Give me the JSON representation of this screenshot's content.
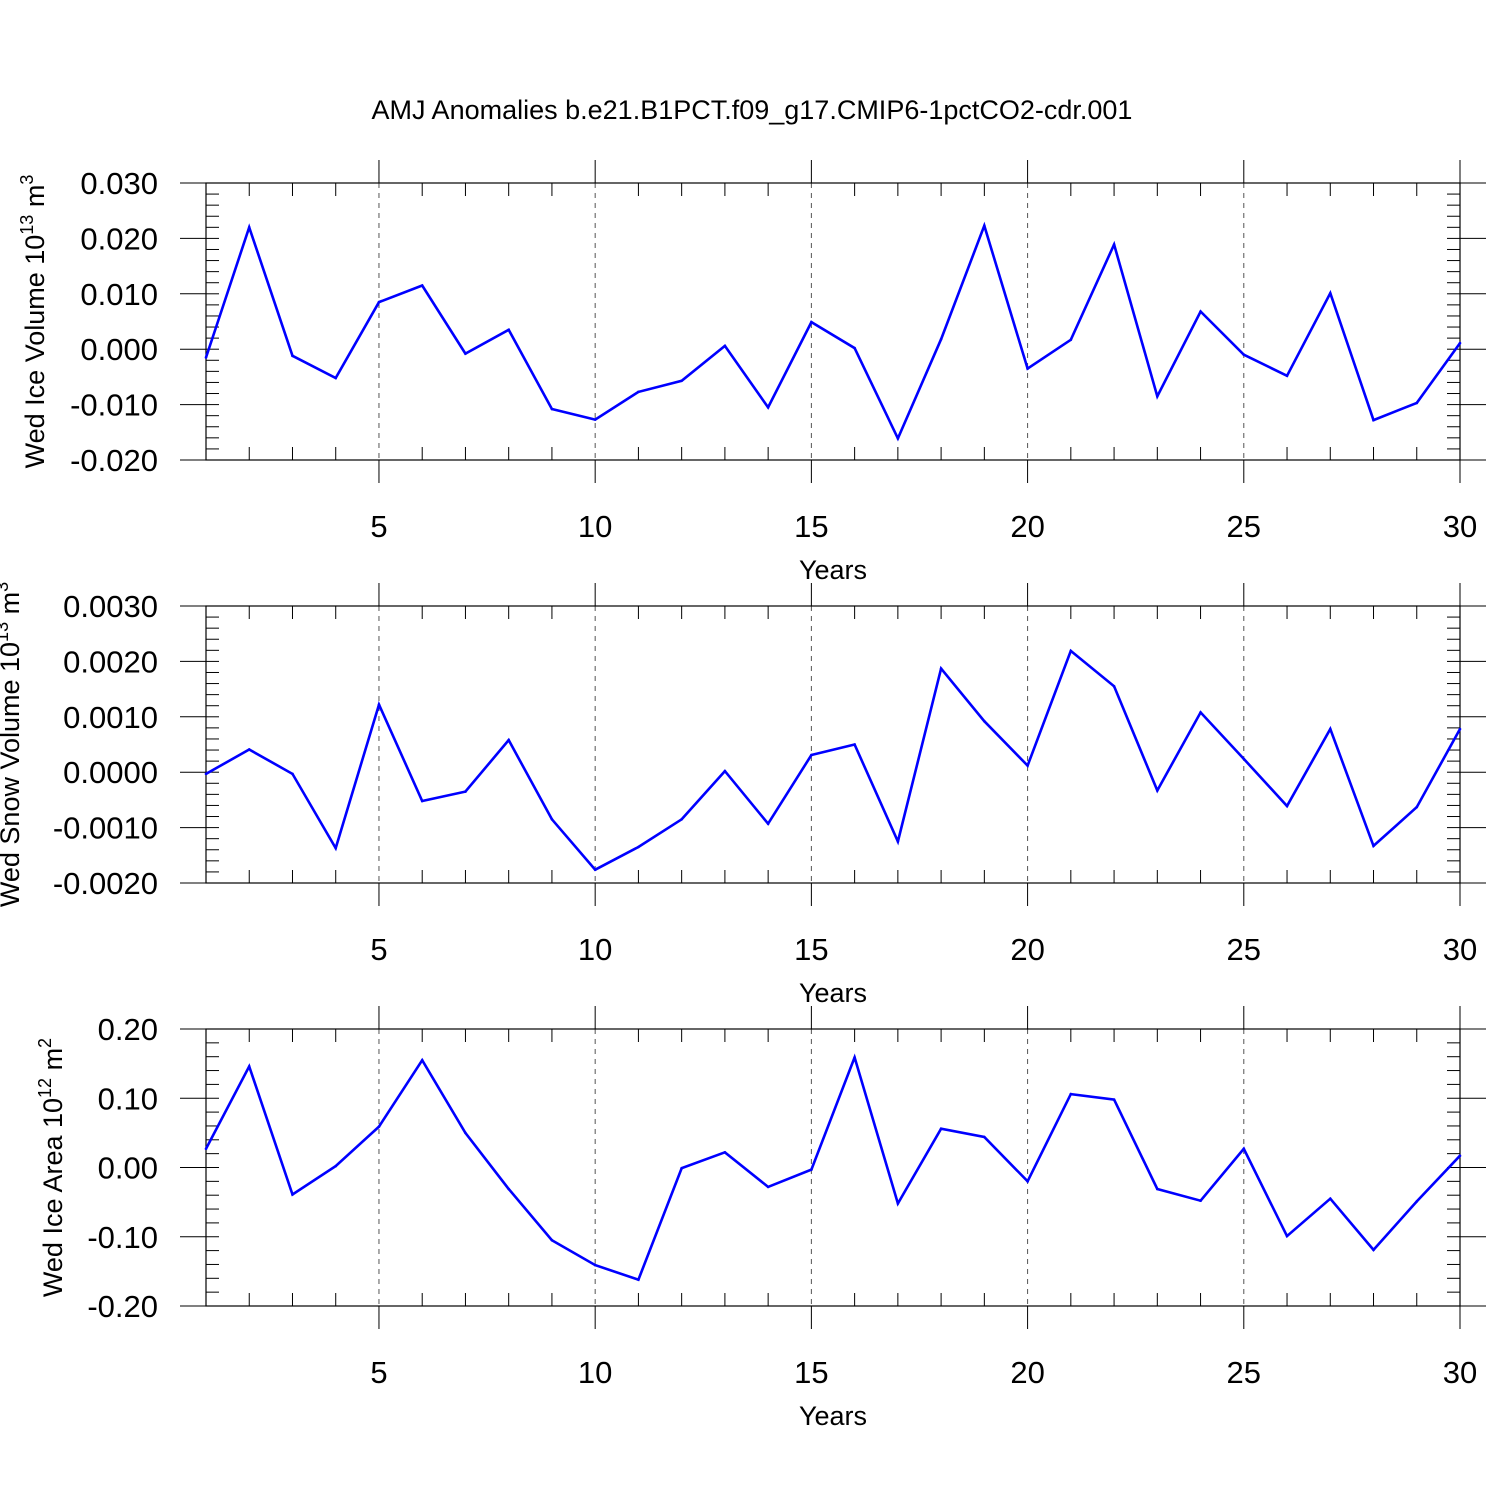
{
  "title": "AMJ Anomalies b.e21.B1PCT.f09_g17.CMIP6-1pctCO2-cdr.001",
  "colors": {
    "line": "#0000ff",
    "axis": "#000000",
    "grid": "#555555",
    "background": "#ffffff"
  },
  "chart_data": [
    {
      "type": "line",
      "ylabel": "Wed Ice Volume 10",
      "ylabel_exp": "13",
      "ylabel_unit": " m",
      "ylabel_unit_exp": "3",
      "xlabel": "Years",
      "xlim": [
        1,
        30
      ],
      "ylim": [
        -0.02,
        0.03
      ],
      "grid": "vertical dashed at major x ticks",
      "x_ticks": [
        5,
        10,
        15,
        20,
        25,
        30
      ],
      "x_tick_labels": [
        "5",
        "10",
        "15",
        "20",
        "25",
        "30"
      ],
      "y_ticks": [
        -0.02,
        -0.01,
        0,
        0.01,
        0.02,
        0.03
      ],
      "y_tick_labels": [
        "-0.020",
        "-0.010",
        "0.000",
        "0.010",
        "0.020",
        "0.030"
      ],
      "y_minor_step": 0.002,
      "series": [
        {
          "x": [
            1,
            2,
            3,
            4,
            5,
            6,
            7,
            8,
            9,
            10,
            11,
            12,
            13,
            14,
            15,
            16,
            17,
            18,
            19,
            20,
            21,
            22,
            23,
            24,
            25,
            26,
            27,
            28,
            29,
            30
          ],
          "values": [
            -0.0015,
            0.022,
            -0.0012,
            -0.0052,
            0.0085,
            0.0115,
            -0.0008,
            0.0035,
            -0.0108,
            -0.0127,
            -0.0077,
            -0.0057,
            0.0006,
            -0.0105,
            0.0049,
            0.0002,
            -0.0161,
            0.0018,
            0.0223,
            -0.0035,
            0.0017,
            0.0189,
            -0.0085,
            0.0068,
            -0.001,
            -0.0048,
            0.0101,
            -0.0128,
            -0.0097,
            0.0011
          ]
        }
      ]
    },
    {
      "type": "line",
      "ylabel": "Wed Snow Volume 10",
      "ylabel_exp": "13",
      "ylabel_unit": " m",
      "ylabel_unit_exp": "3",
      "xlabel": "Years",
      "xlim": [
        1,
        30
      ],
      "ylim": [
        -0.002,
        0.003
      ],
      "grid": "vertical dashed at major x ticks",
      "x_ticks": [
        5,
        10,
        15,
        20,
        25,
        30
      ],
      "x_tick_labels": [
        "5",
        "10",
        "15",
        "20",
        "25",
        "30"
      ],
      "y_ticks": [
        -0.002,
        -0.001,
        0,
        0.001,
        0.002,
        0.003
      ],
      "y_tick_labels": [
        "-0.0020",
        "-0.0010",
        "0.0000",
        "0.0010",
        "0.0020",
        "0.0030"
      ],
      "y_minor_step": 0.0002,
      "series": [
        {
          "x": [
            1,
            2,
            3,
            4,
            5,
            6,
            7,
            8,
            9,
            10,
            11,
            12,
            13,
            14,
            15,
            16,
            17,
            18,
            19,
            20,
            21,
            22,
            23,
            24,
            25,
            26,
            27,
            28,
            29,
            30
          ],
          "values": [
            -3e-05,
            0.00041,
            -3e-05,
            -0.00137,
            0.00122,
            -0.00052,
            -0.00035,
            0.00058,
            -0.00085,
            -0.00176,
            -0.00135,
            -0.00085,
            2e-05,
            -0.00093,
            0.00031,
            0.0005,
            -0.00125,
            0.00187,
            0.00092,
            0.00012,
            0.00219,
            0.00155,
            -0.00033,
            0.00108,
            0.00024,
            -0.00061,
            0.00078,
            -0.00133,
            -0.00063,
            0.00078
          ]
        }
      ]
    },
    {
      "type": "line",
      "ylabel": "Wed Ice Area 10",
      "ylabel_exp": "12",
      "ylabel_unit": " m",
      "ylabel_unit_exp": "2",
      "xlabel": "Years",
      "xlim": [
        1,
        30
      ],
      "ylim": [
        -0.2,
        0.2
      ],
      "grid": "vertical dashed at major x ticks",
      "x_ticks": [
        5,
        10,
        15,
        20,
        25,
        30
      ],
      "x_tick_labels": [
        "5",
        "10",
        "15",
        "20",
        "25",
        "30"
      ],
      "y_ticks": [
        -0.2,
        -0.1,
        0,
        0.1,
        0.2
      ],
      "y_tick_labels": [
        "-0.20",
        "-0.10",
        "0.00",
        "0.10",
        "0.20"
      ],
      "y_minor_step": 0.02,
      "series": [
        {
          "x": [
            1,
            2,
            3,
            4,
            5,
            6,
            7,
            8,
            9,
            10,
            11,
            12,
            13,
            14,
            15,
            16,
            17,
            18,
            19,
            20,
            21,
            22,
            23,
            24,
            25,
            26,
            27,
            28,
            29,
            30
          ],
          "values": [
            0.027,
            0.146,
            -0.039,
            0.002,
            0.059,
            0.155,
            0.05,
            -0.031,
            -0.105,
            -0.141,
            -0.162,
            -0.001,
            0.022,
            -0.028,
            -0.003,
            0.159,
            -0.052,
            0.056,
            0.044,
            -0.02,
            0.106,
            0.098,
            -0.031,
            -0.048,
            0.027,
            -0.099,
            -0.045,
            -0.119,
            -0.049,
            0.017
          ]
        }
      ]
    }
  ]
}
